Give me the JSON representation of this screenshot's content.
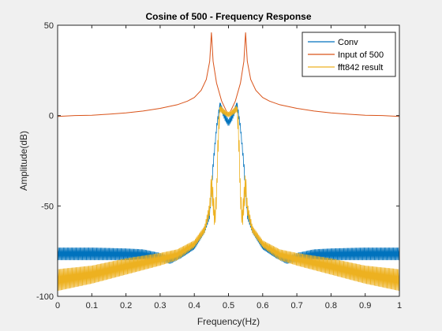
{
  "chart_data": {
    "type": "line",
    "title": "Cosine of 500 - Frequency Response",
    "xlabel": "Frequency(Hz)",
    "ylabel": "Amplitude(dB)",
    "xlim": [
      0,
      1
    ],
    "ylim": [
      -100,
      50
    ],
    "xticks": [
      0,
      0.1,
      0.2,
      0.3,
      0.4,
      0.5,
      0.6,
      0.7,
      0.8,
      0.9,
      1
    ],
    "xtick_labels": [
      "0",
      "0.1",
      "0.2",
      "0.3",
      "0.4",
      "0.5",
      "0.6",
      "0.7",
      "0.8",
      "0.9",
      "1"
    ],
    "yticks": [
      50,
      0,
      -50,
      -100
    ],
    "ytick_labels": [
      "50",
      "0",
      "-50",
      "-100"
    ],
    "grid": false,
    "legend_position": "top-right",
    "series": [
      {
        "name": "Conv",
        "color": "#0072BD",
        "style": "oscillating",
        "upper": [
          [
            0,
            -73
          ],
          [
            0.1,
            -73
          ],
          [
            0.2,
            -73.5
          ],
          [
            0.25,
            -74
          ],
          [
            0.3,
            -76
          ],
          [
            0.33,
            -78
          ],
          [
            0.36,
            -77
          ],
          [
            0.4,
            -72
          ],
          [
            0.43,
            -62
          ],
          [
            0.445,
            -52
          ],
          [
            0.455,
            -25
          ],
          [
            0.465,
            -5
          ],
          [
            0.475,
            8
          ],
          [
            0.49,
            1
          ],
          [
            0.5,
            -2
          ],
          [
            0.51,
            1
          ],
          [
            0.525,
            8
          ],
          [
            0.535,
            -5
          ],
          [
            0.545,
            -25
          ],
          [
            0.555,
            -52
          ],
          [
            0.57,
            -62
          ],
          [
            0.6,
            -72
          ],
          [
            0.64,
            -77
          ],
          [
            0.67,
            -78
          ],
          [
            0.7,
            -76
          ],
          [
            0.75,
            -74
          ],
          [
            0.8,
            -73.5
          ],
          [
            0.9,
            -73
          ],
          [
            1,
            -73
          ]
        ],
        "lower": [
          [
            0,
            -80
          ],
          [
            0.1,
            -80
          ],
          [
            0.2,
            -80
          ],
          [
            0.25,
            -79.5
          ],
          [
            0.3,
            -81
          ],
          [
            0.33,
            -82
          ],
          [
            0.36,
            -79
          ],
          [
            0.4,
            -74
          ],
          [
            0.43,
            -65
          ],
          [
            0.445,
            -57
          ],
          [
            0.455,
            -30
          ],
          [
            0.465,
            -8
          ],
          [
            0.475,
            4
          ],
          [
            0.49,
            -3
          ],
          [
            0.5,
            -6
          ],
          [
            0.51,
            -3
          ],
          [
            0.525,
            4
          ],
          [
            0.535,
            -8
          ],
          [
            0.545,
            -30
          ],
          [
            0.555,
            -57
          ],
          [
            0.57,
            -65
          ],
          [
            0.6,
            -74
          ],
          [
            0.64,
            -79
          ],
          [
            0.67,
            -82
          ],
          [
            0.7,
            -81
          ],
          [
            0.75,
            -79.5
          ],
          [
            0.8,
            -80
          ],
          [
            0.9,
            -80
          ],
          [
            1,
            -80
          ]
        ]
      },
      {
        "name": "Input of 500",
        "color": "#D95319",
        "style": "line",
        "points": [
          [
            0,
            -0.5
          ],
          [
            0.05,
            0
          ],
          [
            0.1,
            0.2
          ],
          [
            0.15,
            0.8
          ],
          [
            0.2,
            1.5
          ],
          [
            0.25,
            2.5
          ],
          [
            0.3,
            4
          ],
          [
            0.35,
            6
          ],
          [
            0.38,
            8
          ],
          [
            0.4,
            10
          ],
          [
            0.42,
            14
          ],
          [
            0.435,
            20
          ],
          [
            0.445,
            30
          ],
          [
            0.45,
            46
          ],
          [
            0.455,
            30
          ],
          [
            0.465,
            18
          ],
          [
            0.48,
            8
          ],
          [
            0.495,
            2
          ],
          [
            0.5,
            0
          ],
          [
            0.505,
            2
          ],
          [
            0.52,
            8
          ],
          [
            0.535,
            18
          ],
          [
            0.545,
            30
          ],
          [
            0.55,
            46
          ],
          [
            0.555,
            30
          ],
          [
            0.565,
            20
          ],
          [
            0.58,
            14
          ],
          [
            0.6,
            10
          ],
          [
            0.62,
            8
          ],
          [
            0.65,
            6
          ],
          [
            0.7,
            4
          ],
          [
            0.75,
            2.5
          ],
          [
            0.8,
            1.5
          ],
          [
            0.85,
            0.8
          ],
          [
            0.9,
            0.2
          ],
          [
            0.95,
            0
          ],
          [
            1,
            -0.5
          ]
        ]
      },
      {
        "name": "fft842 result",
        "color": "#EDB120",
        "style": "oscillating",
        "upper": [
          [
            0,
            -85
          ],
          [
            0.1,
            -83
          ],
          [
            0.2,
            -79
          ],
          [
            0.3,
            -76
          ],
          [
            0.35,
            -74
          ],
          [
            0.4,
            -69
          ],
          [
            0.43,
            -61
          ],
          [
            0.445,
            -48
          ],
          [
            0.45,
            -30
          ],
          [
            0.46,
            -52
          ],
          [
            0.465,
            -40
          ],
          [
            0.47,
            -3
          ],
          [
            0.475,
            6
          ],
          [
            0.49,
            3
          ],
          [
            0.5,
            2
          ],
          [
            0.51,
            3
          ],
          [
            0.525,
            6
          ],
          [
            0.53,
            -3
          ],
          [
            0.535,
            -40
          ],
          [
            0.54,
            -52
          ],
          [
            0.55,
            -30
          ],
          [
            0.555,
            -48
          ],
          [
            0.57,
            -61
          ],
          [
            0.6,
            -69
          ],
          [
            0.65,
            -74
          ],
          [
            0.7,
            -76
          ],
          [
            0.8,
            -79
          ],
          [
            0.9,
            -83
          ],
          [
            1,
            -85
          ]
        ],
        "lower": [
          [
            0,
            -97
          ],
          [
            0.1,
            -93
          ],
          [
            0.2,
            -88
          ],
          [
            0.3,
            -83
          ],
          [
            0.35,
            -80
          ],
          [
            0.4,
            -73
          ],
          [
            0.43,
            -65
          ],
          [
            0.445,
            -55
          ],
          [
            0.45,
            -45
          ],
          [
            0.46,
            -63
          ],
          [
            0.465,
            -50
          ],
          [
            0.47,
            -20
          ],
          [
            0.475,
            2
          ],
          [
            0.49,
            0
          ],
          [
            0.5,
            -1
          ],
          [
            0.51,
            0
          ],
          [
            0.525,
            2
          ],
          [
            0.53,
            -20
          ],
          [
            0.535,
            -50
          ],
          [
            0.54,
            -63
          ],
          [
            0.55,
            -45
          ],
          [
            0.555,
            -55
          ],
          [
            0.57,
            -65
          ],
          [
            0.6,
            -73
          ],
          [
            0.65,
            -80
          ],
          [
            0.7,
            -83
          ],
          [
            0.8,
            -88
          ],
          [
            0.9,
            -93
          ],
          [
            1,
            -97
          ]
        ]
      }
    ]
  }
}
